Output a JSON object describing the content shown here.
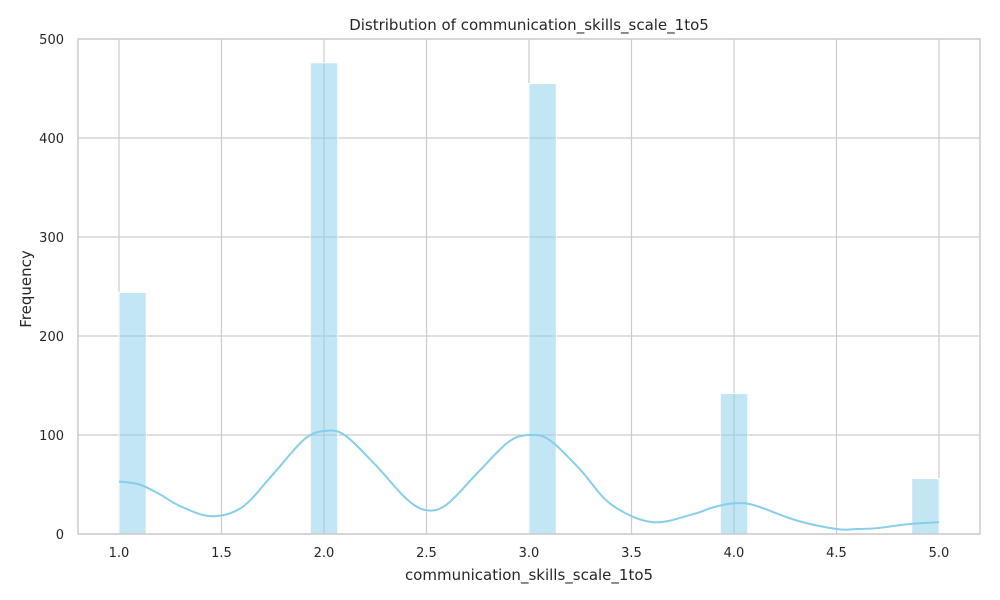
{
  "chart_data": {
    "type": "bar",
    "title": "Distribution of communication_skills_scale_1to5",
    "xlabel": "communication_skills_scale_1to5",
    "ylabel": "Frequency",
    "xlim": [
      0.8,
      5.2
    ],
    "ylim": [
      0,
      500
    ],
    "xticks": [
      "1.0",
      "1.5",
      "2.0",
      "2.5",
      "3.0",
      "3.5",
      "4.0",
      "4.5",
      "5.0"
    ],
    "yticks": [
      "0",
      "100",
      "200",
      "300",
      "400",
      "500"
    ],
    "grid": true,
    "bar_color": "#87ceeb",
    "kde_color": "#87ceeb",
    "bins": [
      {
        "x0": 1.0,
        "x1": 1.133,
        "value": 244
      },
      {
        "x0": 1.933,
        "x1": 2.067,
        "value": 476
      },
      {
        "x0": 3.0,
        "x1": 3.133,
        "value": 455
      },
      {
        "x0": 3.933,
        "x1": 4.067,
        "value": 142
      },
      {
        "x0": 4.867,
        "x1": 5.0,
        "value": 56
      }
    ],
    "kde": {
      "x": [
        1.0,
        1.1,
        1.2,
        1.3,
        1.45,
        1.6,
        1.75,
        1.9,
        2.0,
        2.1,
        2.25,
        2.4,
        2.5,
        2.6,
        2.75,
        2.9,
        3.0,
        3.1,
        3.25,
        3.4,
        3.6,
        3.8,
        3.9,
        4.0,
        4.1,
        4.3,
        4.5,
        4.6,
        4.7,
        4.85,
        5.0
      ],
      "y": [
        53,
        50,
        40,
        28,
        18,
        27,
        60,
        95,
        104,
        100,
        70,
        36,
        24,
        30,
        62,
        93,
        100,
        95,
        65,
        30,
        12,
        20,
        27,
        31,
        29,
        14,
        5,
        5,
        6,
        10,
        12
      ]
    }
  }
}
